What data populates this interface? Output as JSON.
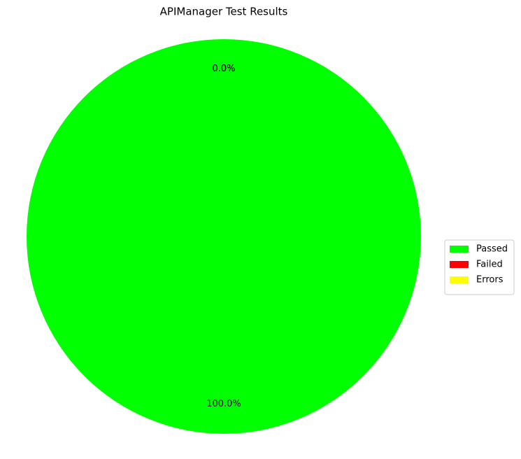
{
  "chart_data": {
    "type": "pie",
    "title": "APIManager Test Results",
    "categories": [
      "Passed",
      "Failed",
      "Errors"
    ],
    "values": [
      100,
      0,
      0
    ],
    "value_labels": [
      "100.0%",
      "0.0%",
      "0.0%"
    ],
    "colors": [
      "#00ff00",
      "#ff0000",
      "#ffff00"
    ],
    "legend": "right"
  }
}
